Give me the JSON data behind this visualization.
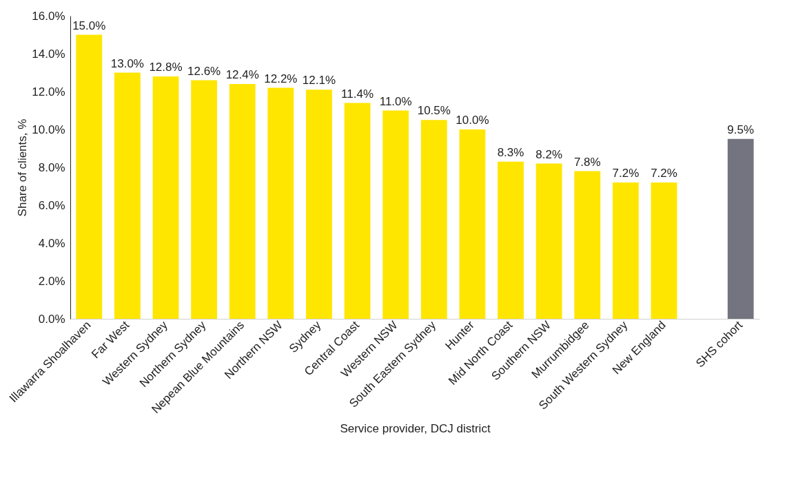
{
  "chart_data": {
    "type": "bar",
    "xlabel": "Service provider, DCJ district",
    "ylabel": "Share of clients, %",
    "categories": [
      "Illawarra Shoalhaven",
      "Far West",
      "Western Sydney",
      "Northern Sydney",
      "Nepean Blue Mountains",
      "Northern NSW",
      "Sydney",
      "Central Coast",
      "Western NSW",
      "South Eastern Sydney",
      "Hunter",
      "Mid North Coast",
      "Southern NSW",
      "Murrumbidgee",
      "South Western Sydney",
      "New England",
      null,
      "SHS cohort"
    ],
    "values": [
      15.0,
      13.0,
      12.8,
      12.6,
      12.4,
      12.2,
      12.1,
      11.4,
      11.0,
      10.5,
      10.0,
      8.3,
      8.2,
      7.8,
      7.2,
      7.2,
      null,
      9.5
    ],
    "value_labels": [
      "15.0%",
      "13.0%",
      "12.8%",
      "12.6%",
      "12.4%",
      "12.2%",
      "12.1%",
      "11.4%",
      "11.0%",
      "10.5%",
      "10.0%",
      "8.3%",
      "8.2%",
      "7.8%",
      "7.2%",
      "7.2%",
      null,
      "9.5%"
    ],
    "colors": [
      "#ffe600",
      "#ffe600",
      "#ffe600",
      "#ffe600",
      "#ffe600",
      "#ffe600",
      "#ffe600",
      "#ffe600",
      "#ffe600",
      "#ffe600",
      "#ffe600",
      "#ffe600",
      "#ffe600",
      "#ffe600",
      "#ffe600",
      "#ffe600",
      "#ffe600",
      "#747480"
    ],
    "ylim": [
      0,
      16
    ],
    "yticks": [
      {
        "value": 0,
        "label": "0.0%"
      },
      {
        "value": 2,
        "label": "2.0%"
      },
      {
        "value": 4,
        "label": "4.0%"
      },
      {
        "value": 6,
        "label": "6.0%"
      },
      {
        "value": 8,
        "label": "8.0%"
      },
      {
        "value": 10,
        "label": "10.0%"
      },
      {
        "value": 12,
        "label": "12.0%"
      },
      {
        "value": 14,
        "label": "14.0%"
      },
      {
        "value": 16,
        "label": "16.0%"
      }
    ],
    "grid": false
  }
}
